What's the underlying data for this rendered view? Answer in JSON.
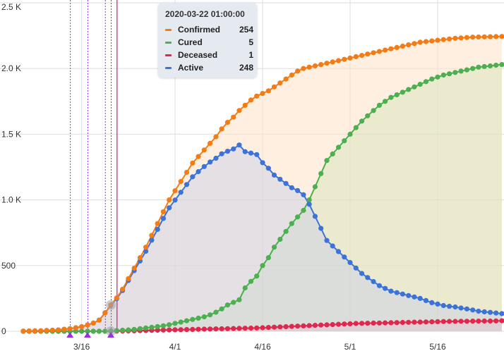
{
  "colors": {
    "confirmed": "#f57c14",
    "cured": "#4caf50",
    "deceased": "#e0284e",
    "active": "#3b73d9",
    "event_line": "#9b30e0",
    "cursor_line": "#c0207a",
    "grid": "#dddddd"
  },
  "tooltip": {
    "title": "2020-03-22 01:00:00",
    "rows": [
      {
        "name": "Confirmed",
        "value": "254",
        "color": "#f57c14"
      },
      {
        "name": "Cured",
        "value": "5",
        "color": "#4caf50"
      },
      {
        "name": "Deceased",
        "value": "1",
        "color": "#e0284e"
      },
      {
        "name": "Active",
        "value": "248",
        "color": "#3b73d9"
      }
    ]
  },
  "chart_data": {
    "type": "area",
    "x_axis": {
      "start": "2020-03-06",
      "end": "2020-05-27",
      "ticks": [
        {
          "date": "2020-03-16",
          "label": "3/16"
        },
        {
          "date": "2020-04-01",
          "label": "4/1"
        },
        {
          "date": "2020-04-16",
          "label": "4/16"
        },
        {
          "date": "2020-05-01",
          "label": "5/1"
        },
        {
          "date": "2020-05-16",
          "label": "5/16"
        }
      ]
    },
    "y_axis": {
      "ylim": [
        0,
        2500
      ],
      "ticks": [
        {
          "value": 0,
          "label": "0"
        },
        {
          "value": 500,
          "label": "500"
        },
        {
          "value": 1000,
          "label": "1.0 K"
        },
        {
          "value": 1500,
          "label": "1.5 K"
        },
        {
          "value": 2000,
          "label": "2.0 K"
        },
        {
          "value": 2500,
          "label": "2.5 K"
        }
      ]
    },
    "grid": true,
    "event_lines": [
      "2020-03-14",
      "2020-03-17",
      "2020-03-20",
      "2020-03-21"
    ],
    "event_markers": [
      "2020-03-14",
      "2020-03-17",
      "2020-03-21"
    ],
    "hover_date": "2020-03-22",
    "x": [
      "2020-03-06",
      "2020-03-07",
      "2020-03-08",
      "2020-03-09",
      "2020-03-10",
      "2020-03-11",
      "2020-03-12",
      "2020-03-13",
      "2020-03-14",
      "2020-03-15",
      "2020-03-16",
      "2020-03-17",
      "2020-03-18",
      "2020-03-19",
      "2020-03-20",
      "2020-03-21",
      "2020-03-22",
      "2020-03-23",
      "2020-03-24",
      "2020-03-25",
      "2020-03-26",
      "2020-03-27",
      "2020-03-28",
      "2020-03-29",
      "2020-03-30",
      "2020-03-31",
      "2020-04-01",
      "2020-04-02",
      "2020-04-03",
      "2020-04-04",
      "2020-04-05",
      "2020-04-06",
      "2020-04-07",
      "2020-04-08",
      "2020-04-09",
      "2020-04-10",
      "2020-04-11",
      "2020-04-12",
      "2020-04-13",
      "2020-04-14",
      "2020-04-15",
      "2020-04-16",
      "2020-04-17",
      "2020-04-18",
      "2020-04-19",
      "2020-04-20",
      "2020-04-21",
      "2020-04-22",
      "2020-04-23",
      "2020-04-24",
      "2020-04-25",
      "2020-04-26",
      "2020-04-27",
      "2020-04-28",
      "2020-04-29",
      "2020-04-30",
      "2020-05-01",
      "2020-05-02",
      "2020-05-03",
      "2020-05-04",
      "2020-05-05",
      "2020-05-06",
      "2020-05-07",
      "2020-05-08",
      "2020-05-09",
      "2020-05-10",
      "2020-05-11",
      "2020-05-12",
      "2020-05-13",
      "2020-05-14",
      "2020-05-15",
      "2020-05-16",
      "2020-05-17",
      "2020-05-18",
      "2020-05-19",
      "2020-05-20",
      "2020-05-21",
      "2020-05-22",
      "2020-05-23",
      "2020-05-24",
      "2020-05-25",
      "2020-05-26",
      "2020-05-27"
    ],
    "series": [
      {
        "name": "Confirmed",
        "color": "#f57c14",
        "values": [
          1,
          2,
          3,
          4,
          6,
          8,
          10,
          15,
          20,
          27,
          35,
          48,
          62,
          85,
          140,
          200,
          254,
          320,
          400,
          480,
          560,
          640,
          730,
          820,
          910,
          1000,
          1070,
          1140,
          1210,
          1280,
          1330,
          1380,
          1430,
          1480,
          1540,
          1590,
          1630,
          1680,
          1720,
          1760,
          1790,
          1810,
          1830,
          1860,
          1890,
          1920,
          1950,
          1980,
          2000,
          2010,
          2020,
          2030,
          2040,
          2050,
          2060,
          2070,
          2080,
          2090,
          2100,
          2110,
          2120,
          2130,
          2140,
          2150,
          2160,
          2170,
          2180,
          2190,
          2200,
          2205,
          2210,
          2215,
          2220,
          2225,
          2230,
          2233,
          2236,
          2239,
          2240,
          2241,
          2242,
          2243,
          2244
        ]
      },
      {
        "name": "Cured",
        "values": [
          0,
          0,
          0,
          0,
          0,
          0,
          0,
          0,
          0,
          0,
          0,
          0,
          0,
          0,
          0,
          2,
          5,
          8,
          10,
          14,
          20,
          25,
          30,
          36,
          42,
          50,
          60,
          70,
          80,
          90,
          100,
          110,
          125,
          145,
          170,
          200,
          220,
          240,
          330,
          380,
          420,
          500,
          560,
          640,
          700,
          760,
          820,
          870,
          920,
          1000,
          1100,
          1200,
          1300,
          1350,
          1400,
          1450,
          1500,
          1550,
          1600,
          1640,
          1680,
          1720,
          1750,
          1780,
          1800,
          1820,
          1840,
          1860,
          1880,
          1900,
          1920,
          1935,
          1950,
          1960,
          1970,
          1980,
          1990,
          2000,
          2010,
          2015,
          2020,
          2025,
          2030
        ],
        "color": "#4caf50"
      },
      {
        "name": "Deceased",
        "values": [
          0,
          0,
          0,
          0,
          0,
          0,
          0,
          0,
          0,
          0,
          0,
          0,
          0,
          0,
          0,
          0,
          1,
          2,
          3,
          4,
          5,
          6,
          7,
          8,
          9,
          10,
          11,
          12,
          13,
          14,
          15,
          16,
          17,
          18,
          19,
          20,
          21,
          22,
          23,
          24,
          25,
          27,
          29,
          31,
          33,
          35,
          37,
          39,
          41,
          43,
          45,
          47,
          49,
          51,
          53,
          55,
          57,
          59,
          60,
          61,
          62,
          63,
          64,
          65,
          66,
          67,
          68,
          69,
          70,
          71,
          72,
          73,
          74,
          75,
          75,
          76,
          76,
          77,
          77,
          78,
          78,
          79,
          80
        ],
        "color": "#e0284e"
      },
      {
        "name": "Active",
        "values": [
          1,
          2,
          3,
          4,
          6,
          8,
          10,
          15,
          20,
          27,
          35,
          48,
          62,
          85,
          140,
          198,
          248,
          310,
          387,
          462,
          535,
          609,
          693,
          776,
          859,
          940,
          999,
          1058,
          1117,
          1176,
          1215,
          1254,
          1288,
          1317,
          1351,
          1370,
          1388,
          1418,
          1367,
          1356,
          1345,
          1283,
          1241,
          1189,
          1157,
          1125,
          1093,
          1071,
          1039,
          967,
          875,
          783,
          691,
          649,
          607,
          565,
          523,
          481,
          440,
          409,
          378,
          347,
          326,
          305,
          294,
          283,
          272,
          261,
          250,
          234,
          218,
          207,
          196,
          190,
          185,
          177,
          170,
          162,
          153,
          148,
          144,
          139,
          134
        ]
      }
    ]
  }
}
